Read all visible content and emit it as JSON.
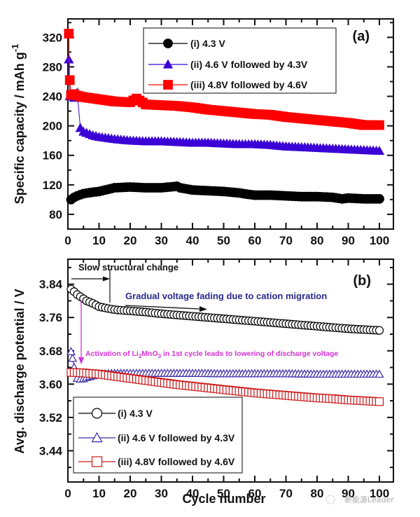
{
  "watermark": "新能源Leader",
  "chart_data": [
    {
      "panel": "(a)",
      "type": "scatter",
      "xlabel": "",
      "ylabel": "Specific capacity / mAh g",
      "ylabel_superscript": "-1",
      "xlim": [
        0,
        105
      ],
      "ylim": [
        60,
        345
      ],
      "xticks": [
        0,
        10,
        20,
        30,
        40,
        50,
        60,
        70,
        80,
        90,
        100
      ],
      "yticks": [
        80,
        120,
        160,
        200,
        240,
        280,
        320
      ],
      "legend_position": "top-center",
      "series": [
        {
          "name": "(i) 4.3 V",
          "marker": "filled-circle",
          "color": "#000000",
          "x": [
            1,
            2,
            3,
            5,
            8,
            10,
            12,
            15,
            20,
            25,
            30,
            35,
            36,
            40,
            45,
            50,
            55,
            58,
            60,
            65,
            70,
            75,
            80,
            85,
            88,
            90,
            95,
            100
          ],
          "values": [
            100,
            103,
            105,
            108,
            110,
            111,
            113,
            116,
            117,
            116,
            116,
            118,
            116,
            113,
            112,
            111,
            109,
            107,
            106,
            106,
            105,
            104,
            104,
            103,
            101,
            102,
            101,
            101
          ]
        },
        {
          "name": "(ii) 4.6 V followed by 4.3V",
          "marker": "filled-triangle",
          "color": "#3a00d6",
          "x": [
            0.3,
            0.6,
            1,
            2,
            3,
            4,
            5,
            8,
            10,
            15,
            20,
            25,
            30,
            35,
            40,
            45,
            50,
            55,
            60,
            65,
            70,
            75,
            80,
            85,
            90,
            95,
            100
          ],
          "values": [
            290,
            240,
            240,
            238,
            245,
            197,
            192,
            187,
            185,
            182,
            180,
            179,
            179,
            178,
            177,
            177,
            176,
            175,
            175,
            174,
            172,
            171,
            170,
            169,
            168,
            167,
            166
          ]
        },
        {
          "name": "(iii) 4.8V followed by 4.6V",
          "marker": "filled-square",
          "color": "#ff0000",
          "x": [
            0.3,
            0.6,
            1,
            2,
            3,
            5,
            10,
            15,
            20,
            22,
            25,
            30,
            35,
            40,
            45,
            50,
            55,
            60,
            65,
            70,
            75,
            80,
            85,
            90,
            95,
            100
          ],
          "values": [
            325,
            262,
            242,
            243,
            241,
            239,
            236,
            233,
            232,
            237,
            229,
            228,
            227,
            225,
            222,
            220,
            218,
            216,
            215,
            212,
            210,
            208,
            206,
            204,
            201,
            201
          ]
        }
      ],
      "annotations": []
    },
    {
      "panel": "(b)",
      "type": "scatter",
      "xlabel": "Cycle number",
      "ylabel": "Avg. discharge potential / V",
      "xlim": [
        0,
        105
      ],
      "ylim": [
        3.365,
        3.9
      ],
      "xticks": [
        0,
        10,
        20,
        30,
        40,
        50,
        60,
        70,
        80,
        90,
        100
      ],
      "yticks": [
        3.44,
        3.52,
        3.6,
        3.68,
        3.76,
        3.84
      ],
      "ytick_labels": [
        "3.44",
        "3.52",
        "3.60",
        "3.68",
        "3.76",
        "3.84"
      ],
      "legend_position": "bottom-left",
      "series": [
        {
          "name": "(i) 4.3 V",
          "marker": "open-circle",
          "color": "#000000",
          "x": [
            1,
            2,
            3,
            4,
            5,
            6,
            7,
            8,
            9,
            10,
            12,
            14,
            16,
            20,
            25,
            30,
            35,
            40,
            45,
            50,
            55,
            60,
            65,
            70,
            75,
            80,
            85,
            90,
            95,
            100
          ],
          "values": [
            3.828,
            3.822,
            3.815,
            3.81,
            3.805,
            3.8,
            3.797,
            3.794,
            3.79,
            3.786,
            3.783,
            3.78,
            3.778,
            3.776,
            3.773,
            3.769,
            3.766,
            3.763,
            3.76,
            3.757,
            3.754,
            3.751,
            3.748,
            3.745,
            3.742,
            3.739,
            3.736,
            3.733,
            3.731,
            3.729
          ]
        },
        {
          "name": "(ii) 4.6 V followed by 4.3V",
          "marker": "open-triangle",
          "color": "#3a2aa8",
          "x": [
            1,
            1.5,
            2,
            3,
            4,
            5,
            6,
            8,
            10,
            15,
            20,
            30,
            40,
            50,
            60,
            70,
            80,
            90,
            100
          ],
          "values": [
            3.678,
            3.662,
            3.64,
            3.614,
            3.612,
            3.613,
            3.616,
            3.62,
            3.624,
            3.626,
            3.626,
            3.626,
            3.626,
            3.625,
            3.625,
            3.625,
            3.624,
            3.624,
            3.624
          ]
        },
        {
          "name": "(iii) 4.8V followed by 4.6V",
          "marker": "open-square",
          "color": "#cc1a1a",
          "x": [
            1,
            2,
            5,
            10,
            15,
            20,
            25,
            30,
            35,
            40,
            45,
            50,
            55,
            60,
            65,
            70,
            75,
            80,
            85,
            90,
            95,
            100
          ],
          "values": [
            3.628,
            3.628,
            3.627,
            3.624,
            3.619,
            3.614,
            3.609,
            3.604,
            3.599,
            3.595,
            3.591,
            3.587,
            3.583,
            3.579,
            3.576,
            3.573,
            3.57,
            3.567,
            3.565,
            3.562,
            3.56,
            3.558
          ]
        }
      ],
      "annotations": [
        {
          "text": "Slow structural change",
          "style": "black"
        },
        {
          "text": "Gradual voltage fading due to cation migration",
          "style": "blue"
        },
        {
          "text_parts": [
            "Activation of Li",
            "2",
            "MnO",
            "3",
            " in 1st cycle leads to lowering of discharge voltage"
          ],
          "style": "magenta"
        }
      ]
    }
  ]
}
